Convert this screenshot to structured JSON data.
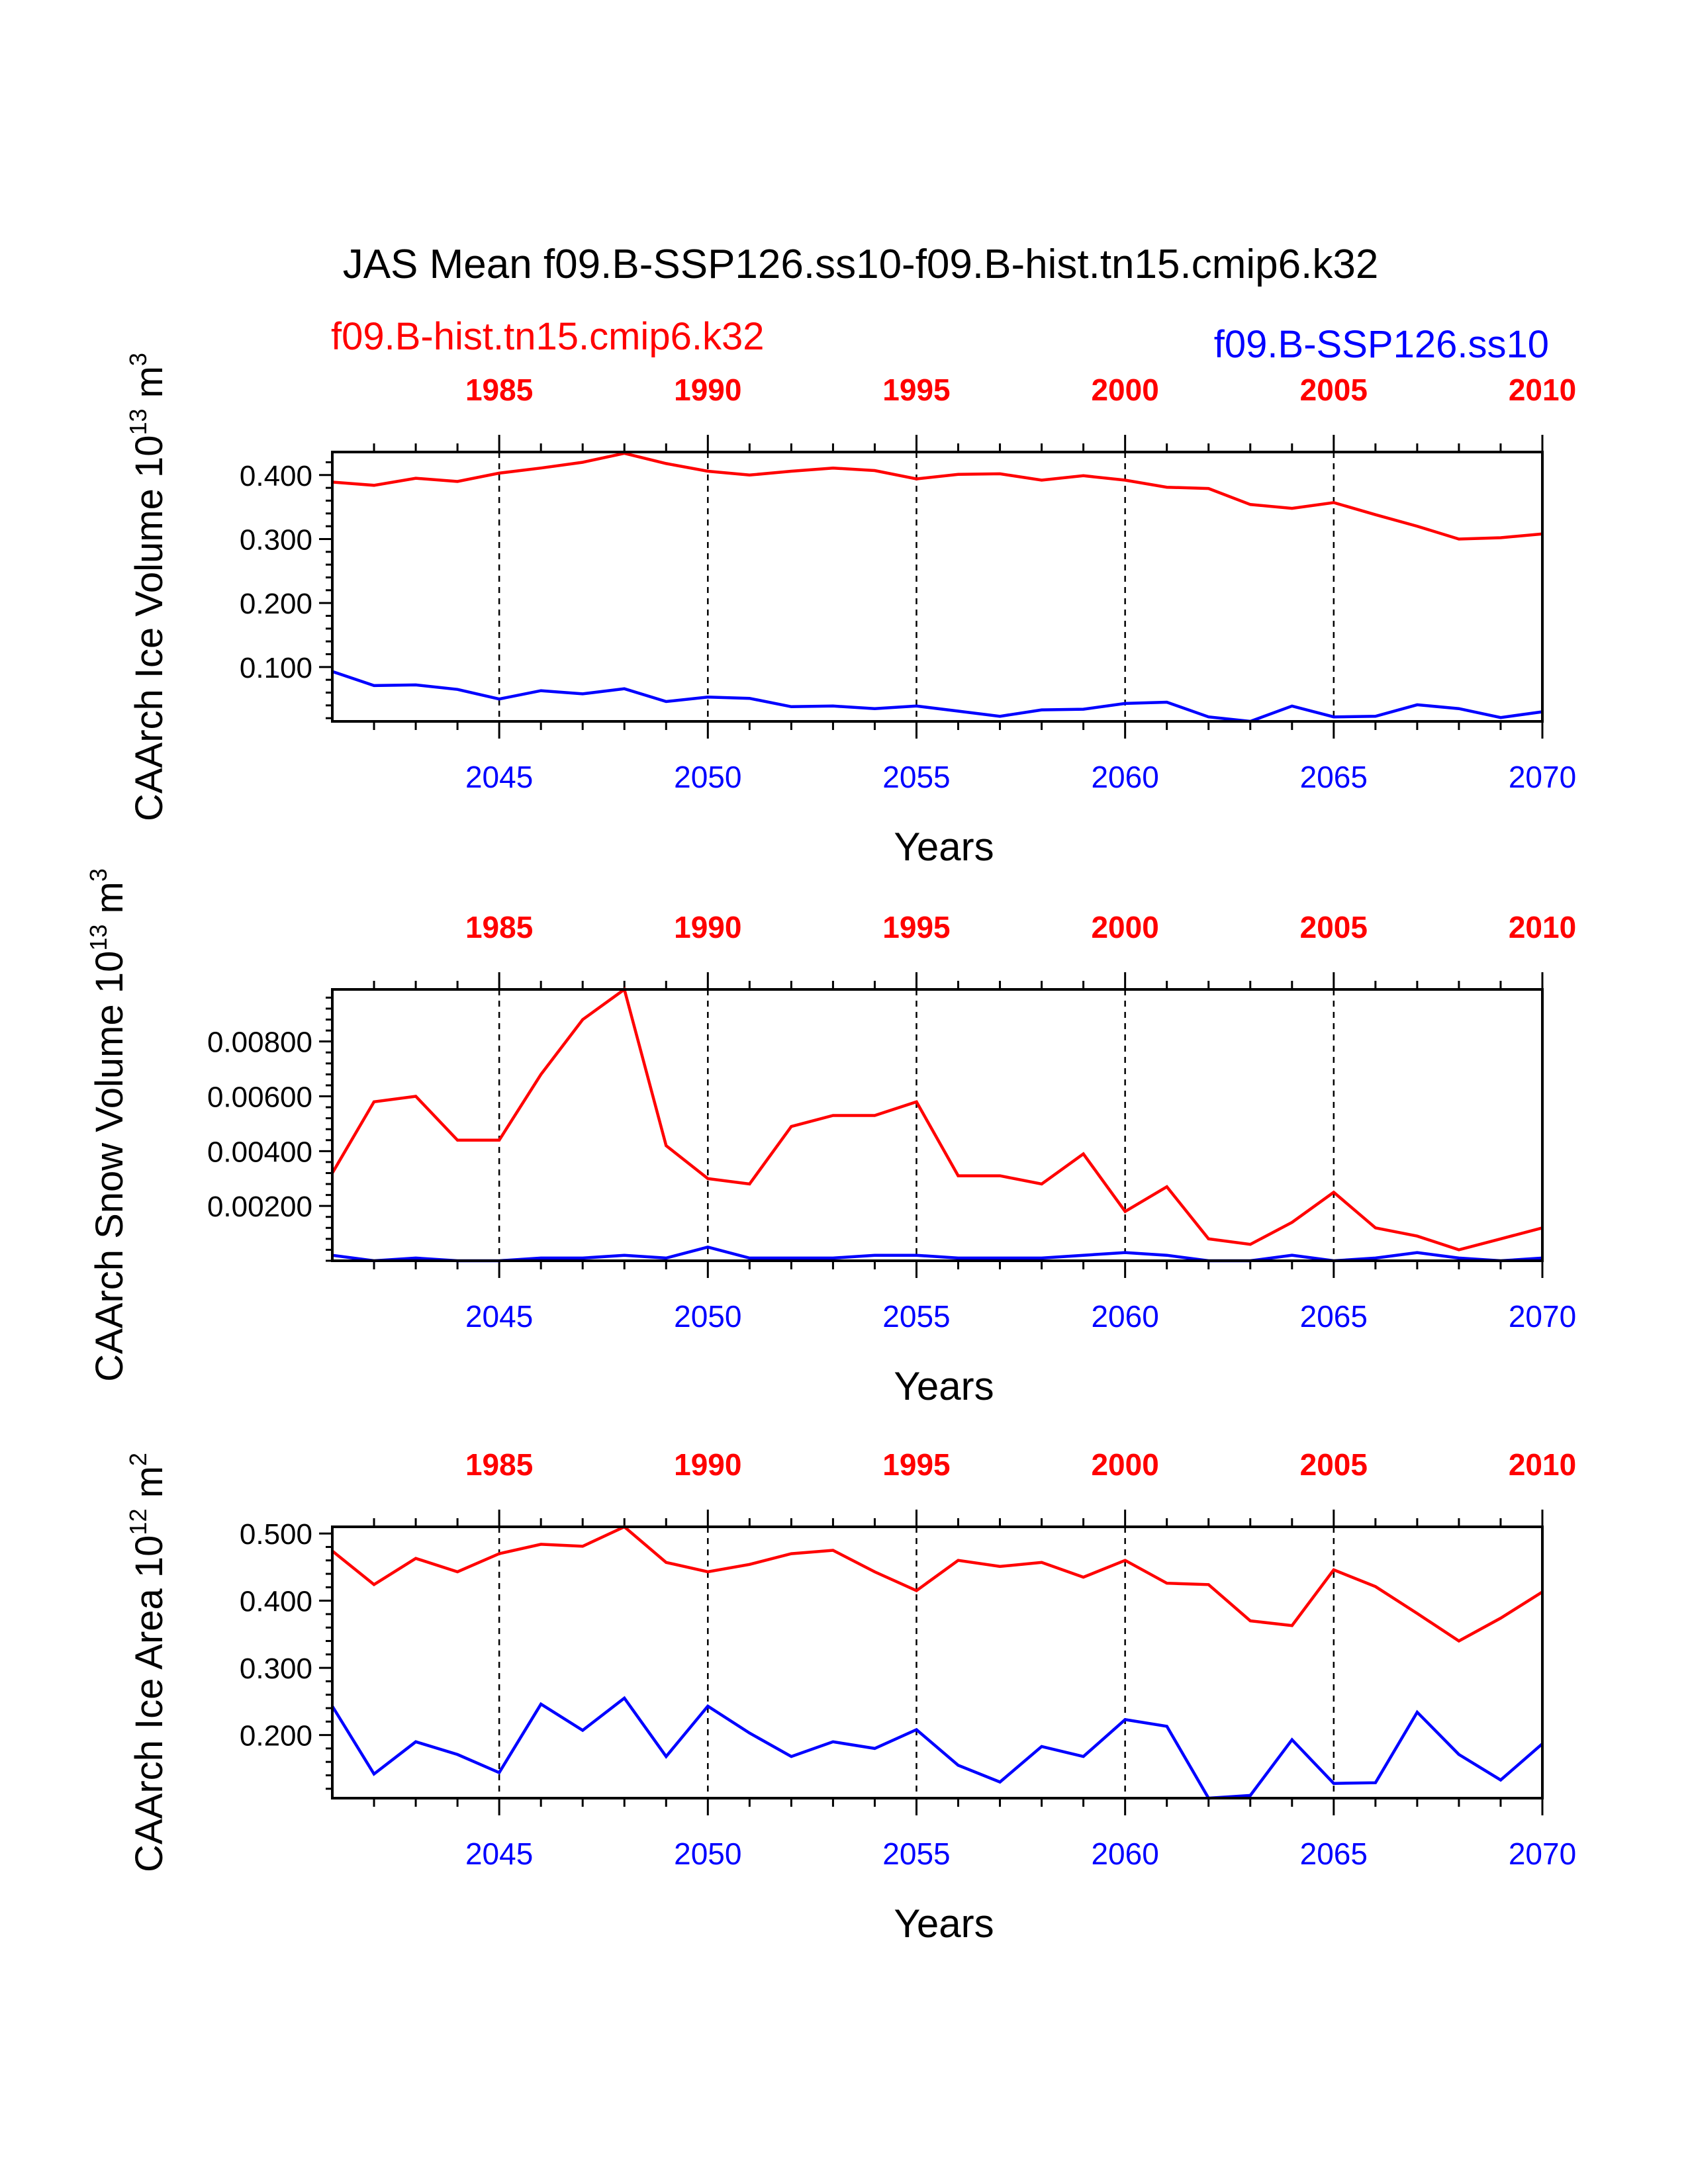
{
  "title": "JAS Mean f09.B-SSP126.ss10-f09.B-hist.tn15.cmip6.k32",
  "legend": {
    "left": "f09.B-hist.tn15.cmip6.k32",
    "right": "f09.B-SSP126.ss10"
  },
  "colors": {
    "hist": "#ff0000",
    "ssp": "#0000ff",
    "axis": "#000000"
  },
  "top_axis_labels": [
    "1985",
    "1990",
    "1995",
    "2000",
    "2005",
    "2010"
  ],
  "bottom_axis_labels": [
    "2045",
    "2050",
    "2055",
    "2060",
    "2065",
    "2070"
  ],
  "xlabel": "Years",
  "chart_data": [
    {
      "type": "line",
      "ylabel": "CAArch Ice Volume 10",
      "ylabel_exp": "13",
      "ylabel_unit": " m",
      "ylabel_unit_exp": "3",
      "x_bottom": [
        2041,
        2042,
        2043,
        2044,
        2045,
        2046,
        2047,
        2048,
        2049,
        2050,
        2051,
        2052,
        2053,
        2054,
        2055,
        2056,
        2057,
        2058,
        2059,
        2060,
        2061,
        2062,
        2063,
        2064,
        2065,
        2066,
        2067,
        2068,
        2069,
        2070
      ],
      "x_top_range": [
        1981,
        2010
      ],
      "xlim": [
        2041,
        2070
      ],
      "ylim": [
        0.015,
        0.436
      ],
      "yticks": [
        0.1,
        0.2,
        0.3,
        0.4
      ],
      "yticklabels": [
        "0.100",
        "0.200",
        "0.300",
        "0.400"
      ],
      "yminor": 0.02,
      "grid_x": [
        2045,
        2050,
        2055,
        2060,
        2065
      ],
      "series": [
        {
          "name": "f09.B-hist.tn15.cmip6.k32",
          "color": "#ff0000",
          "values": [
            0.389,
            0.384,
            0.395,
            0.39,
            0.403,
            0.411,
            0.42,
            0.434,
            0.418,
            0.406,
            0.4,
            0.406,
            0.411,
            0.407,
            0.394,
            0.401,
            0.402,
            0.392,
            0.399,
            0.392,
            0.381,
            0.379,
            0.354,
            0.348,
            0.357,
            0.338,
            0.32,
            0.3,
            0.302,
            0.308
          ]
        },
        {
          "name": "f09.B-SSP126.ss10",
          "color": "#0000ff",
          "values": [
            0.093,
            0.071,
            0.072,
            0.065,
            0.05,
            0.063,
            0.058,
            0.066,
            0.046,
            0.053,
            0.051,
            0.038,
            0.039,
            0.035,
            0.039,
            0.031,
            0.023,
            0.033,
            0.034,
            0.043,
            0.045,
            0.022,
            0.015,
            0.039,
            0.022,
            0.023,
            0.041,
            0.035,
            0.021,
            0.03
          ]
        }
      ]
    },
    {
      "type": "line",
      "ylabel": "CAArch Snow Volume 10",
      "ylabel_exp": "13",
      "ylabel_unit": " m",
      "ylabel_unit_exp": "3",
      "x_bottom": [
        2041,
        2042,
        2043,
        2044,
        2045,
        2046,
        2047,
        2048,
        2049,
        2050,
        2051,
        2052,
        2053,
        2054,
        2055,
        2056,
        2057,
        2058,
        2059,
        2060,
        2061,
        2062,
        2063,
        2064,
        2065,
        2066,
        2067,
        2068,
        2069,
        2070
      ],
      "x_top_range": [
        1981,
        2010
      ],
      "xlim": [
        2041,
        2070
      ],
      "ylim": [
        0.0,
        0.0099
      ],
      "yticks": [
        0.002,
        0.004,
        0.006,
        0.008
      ],
      "yticklabels": [
        "0.00200",
        "0.00400",
        "0.00600",
        "0.00800"
      ],
      "yminor": 0.0004,
      "grid_x": [
        2045,
        2050,
        2055,
        2060,
        2065
      ],
      "series": [
        {
          "name": "f09.B-hist.tn15.cmip6.k32",
          "color": "#ff0000",
          "values": [
            0.0032,
            0.0058,
            0.006,
            0.0044,
            0.0044,
            0.0068,
            0.0088,
            0.0099,
            0.0042,
            0.003,
            0.0028,
            0.0049,
            0.0053,
            0.0053,
            0.0058,
            0.0031,
            0.0031,
            0.0028,
            0.0039,
            0.0018,
            0.0027,
            0.0008,
            0.0006,
            0.0014,
            0.0025,
            0.0012,
            0.0009,
            0.0004,
            0.0008,
            0.0012
          ]
        },
        {
          "name": "f09.B-SSP126.ss10",
          "color": "#0000ff",
          "values": [
            0.0002,
            0.0,
            0.0001,
            0.0,
            0.0,
            0.0001,
            0.0001,
            0.0002,
            0.0001,
            0.0005,
            0.0001,
            0.0001,
            0.0001,
            0.0002,
            0.0002,
            0.0001,
            0.0001,
            0.0001,
            0.0002,
            0.0003,
            0.0002,
            0.0,
            0.0,
            0.0002,
            0.0,
            0.0001,
            0.0003,
            0.0001,
            0.0,
            0.0001
          ]
        }
      ]
    },
    {
      "type": "line",
      "ylabel": "CAArch Ice Area 10",
      "ylabel_exp": "12",
      "ylabel_unit": " m",
      "ylabel_unit_exp": "2",
      "x_bottom": [
        2041,
        2042,
        2043,
        2044,
        2045,
        2046,
        2047,
        2048,
        2049,
        2050,
        2051,
        2052,
        2053,
        2054,
        2055,
        2056,
        2057,
        2058,
        2059,
        2060,
        2061,
        2062,
        2063,
        2064,
        2065,
        2066,
        2067,
        2068,
        2069,
        2070
      ],
      "x_top_range": [
        1981,
        2010
      ],
      "xlim": [
        2041,
        2070
      ],
      "ylim": [
        0.106,
        0.51
      ],
      "yticks": [
        0.2,
        0.3,
        0.4,
        0.5
      ],
      "yticklabels": [
        "0.200",
        "0.300",
        "0.400",
        "0.500"
      ],
      "yminor": 0.02,
      "grid_x": [
        2045,
        2050,
        2055,
        2060,
        2065
      ],
      "series": [
        {
          "name": "f09.B-hist.tn15.cmip6.k32",
          "color": "#ff0000",
          "values": [
            0.474,
            0.424,
            0.463,
            0.443,
            0.47,
            0.484,
            0.481,
            0.51,
            0.457,
            0.443,
            0.454,
            0.47,
            0.475,
            0.443,
            0.415,
            0.46,
            0.451,
            0.457,
            0.435,
            0.46,
            0.426,
            0.424,
            0.37,
            0.363,
            0.446,
            0.421,
            0.381,
            0.34,
            0.374,
            0.413
          ]
        },
        {
          "name": "f09.B-SSP126.ss10",
          "color": "#0000ff",
          "values": [
            0.243,
            0.142,
            0.19,
            0.171,
            0.144,
            0.246,
            0.207,
            0.255,
            0.168,
            0.243,
            0.203,
            0.168,
            0.19,
            0.18,
            0.208,
            0.155,
            0.13,
            0.183,
            0.168,
            0.223,
            0.213,
            0.106,
            0.11,
            0.193,
            0.128,
            0.129,
            0.234,
            0.171,
            0.133,
            0.187
          ]
        }
      ]
    }
  ]
}
